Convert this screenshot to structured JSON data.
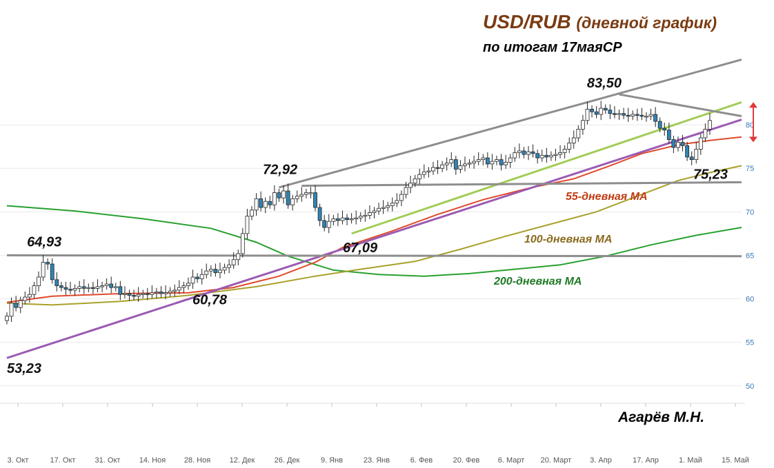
{
  "title": {
    "main": "USD/RUB",
    "sub": "(дневной график)"
  },
  "subtitle": "по итогам 17маяСР",
  "author": "Агарёв М.Н.",
  "colors": {
    "ma55": "#e0492a",
    "ma100": "#a8a029",
    "ma200": "#27a02e",
    "trend_purple": "#9b5ab3",
    "trend_green": "#a2cc55",
    "trend_gray": "#8d8d8d",
    "candle_up": "#ffffff",
    "candle_down": "#2f84b5",
    "arrow": "#e03a3a",
    "ma55_label": "#bf3a12",
    "ma100_label": "#8a6a1e",
    "ma200_label": "#1f7a26"
  },
  "chart_data": {
    "type": "candlestick",
    "yaxis": {
      "ticks": [
        50,
        55,
        60,
        65,
        70,
        75,
        80
      ],
      "range": [
        48,
        85
      ]
    },
    "xaxis": {
      "ticks": [
        "3. Окт",
        "17. Окт",
        "31. Окт",
        "14. Ноя",
        "28. Ноя",
        "12. Дек",
        "26. Дек",
        "9. Янв",
        "23. Янв",
        "6. Фев",
        "20. Фев",
        "6. Март",
        "20. Март",
        "3. Апр",
        "17. Апр",
        "1. Май",
        "15. Май"
      ],
      "range": [
        0,
        162
      ]
    },
    "closes": [
      58,
      59.5,
      59,
      59.8,
      60.2,
      60.5,
      61.5,
      62.5,
      64.2,
      64,
      62.2,
      61.5,
      61.3,
      61.1,
      61,
      61.2,
      61.4,
      61.2,
      61.3,
      61.2,
      61.4,
      61.5,
      61.7,
      61.3,
      61.4,
      60.5,
      60.6,
      60.4,
      60.3,
      60.5,
      60.6,
      60.5,
      60.7,
      60.8,
      60.6,
      60.7,
      60.9,
      61,
      61.3,
      61.5,
      61.8,
      62.5,
      62.3,
      62.8,
      63.2,
      63.4,
      63.0,
      63.3,
      63.6,
      63.9,
      64.5,
      65.2,
      67.5,
      69.5,
      70.2,
      71.5,
      70.5,
      71.2,
      70.8,
      72.2,
      71.6,
      72.4,
      70.8,
      71.5,
      71.8,
      72.0,
      72.2,
      72.2,
      70.5,
      69.0,
      68.2,
      68.9,
      69.2,
      69.0,
      69.3,
      69.1,
      69.2,
      69.3,
      69.5,
      69.6,
      69.9,
      70.1,
      70.4,
      70.5,
      70.7,
      71.0,
      71.3,
      72.0,
      72.8,
      73.3,
      73.8,
      74.3,
      74.6,
      74.7,
      75.1,
      75.0,
      75.4,
      75.6,
      76.0,
      74.9,
      75.3,
      75.5,
      75.6,
      75.8,
      76.0,
      76.2,
      75.5,
      75.8,
      76.0,
      75.4,
      75.7,
      76.2,
      76.8,
      77.0,
      76.6,
      76.9,
      76.7,
      76.2,
      76.5,
      76.3,
      76.5,
      76.6,
      76.8,
      77.2,
      77.9,
      78.5,
      79.5,
      80.5,
      81.8,
      81.5,
      81.2,
      81.9,
      81.7,
      81.3,
      81.2,
      81.3,
      81.1,
      81.0,
      81.2,
      81.1,
      81.0,
      81.0,
      81.2,
      80.4,
      79.6,
      79.4,
      78.3,
      77.4,
      78.0,
      77.6,
      76.3,
      76.0,
      77.2,
      78.5,
      79.5,
      80.5
    ],
    "ma55": [
      [
        0,
        59.6
      ],
      [
        10,
        60.3
      ],
      [
        25,
        60.6
      ],
      [
        40,
        60.7
      ],
      [
        50,
        61.3
      ],
      [
        60,
        62.6
      ],
      [
        68,
        64.2
      ],
      [
        74,
        65.9
      ],
      [
        85,
        67.8
      ],
      [
        95,
        69.7
      ],
      [
        105,
        71.4
      ],
      [
        115,
        72.7
      ],
      [
        125,
        73.8
      ],
      [
        133,
        75.3
      ],
      [
        140,
        76.7
      ],
      [
        148,
        77.7
      ],
      [
        155,
        78.2
      ],
      [
        162,
        78.6
      ]
    ],
    "ma100": [
      [
        0,
        59.5
      ],
      [
        10,
        59.3
      ],
      [
        25,
        59.7
      ],
      [
        40,
        60.4
      ],
      [
        55,
        61.4
      ],
      [
        68,
        62.6
      ],
      [
        78,
        63.4
      ],
      [
        90,
        64.3
      ],
      [
        100,
        65.7
      ],
      [
        110,
        67.2
      ],
      [
        120,
        68.6
      ],
      [
        130,
        70.0
      ],
      [
        140,
        72.0
      ],
      [
        148,
        73.6
      ],
      [
        155,
        74.5
      ],
      [
        162,
        75.3
      ]
    ],
    "ma200": [
      [
        0,
        70.7
      ],
      [
        15,
        70.1
      ],
      [
        30,
        69.2
      ],
      [
        45,
        68.1
      ],
      [
        55,
        66.5
      ],
      [
        62,
        64.9
      ],
      [
        72,
        63.3
      ],
      [
        82,
        62.8
      ],
      [
        92,
        62.6
      ],
      [
        102,
        62.9
      ],
      [
        112,
        63.4
      ],
      [
        122,
        63.9
      ],
      [
        132,
        64.9
      ],
      [
        142,
        66.2
      ],
      [
        152,
        67.3
      ],
      [
        162,
        68.2
      ]
    ],
    "trendlines": [
      {
        "name": "purple",
        "points": [
          [
            0,
            53.2
          ],
          [
            162,
            80.6
          ]
        ]
      },
      {
        "name": "green",
        "points": [
          [
            76,
            67.5
          ],
          [
            162,
            82.6
          ]
        ]
      },
      {
        "name": "gray-upper",
        "points": [
          [
            60,
            72.8
          ],
          [
            162,
            87.5
          ]
        ]
      },
      {
        "name": "gray-top",
        "points": [
          [
            135,
            83.5
          ],
          [
            162,
            81.0
          ]
        ]
      },
      {
        "name": "gray-mid",
        "points": [
          [
            65,
            73.0
          ],
          [
            162,
            73.4
          ]
        ]
      },
      {
        "name": "gray-low",
        "points": [
          [
            0,
            65.0
          ],
          [
            162,
            64.9
          ]
        ]
      }
    ],
    "annotations": [
      {
        "text": "53,23",
        "x": 0,
        "y": 53.23
      },
      {
        "text": "64,93",
        "x": 9,
        "y": 64.93
      },
      {
        "text": "60,78",
        "x": 47,
        "y": 60.78
      },
      {
        "text": "72,92",
        "x": 61,
        "y": 72.92
      },
      {
        "text": "67,09",
        "x": 75,
        "y": 67.09
      },
      {
        "text": "83,50",
        "x": 134,
        "y": 83.5
      },
      {
        "text": "75,23",
        "x": 155,
        "y": 75.23
      }
    ],
    "ma_labels": {
      "ma55": "55-дневная МА",
      "ma100": "100-дневная МА",
      "ma200": "200-дневная МА"
    }
  }
}
